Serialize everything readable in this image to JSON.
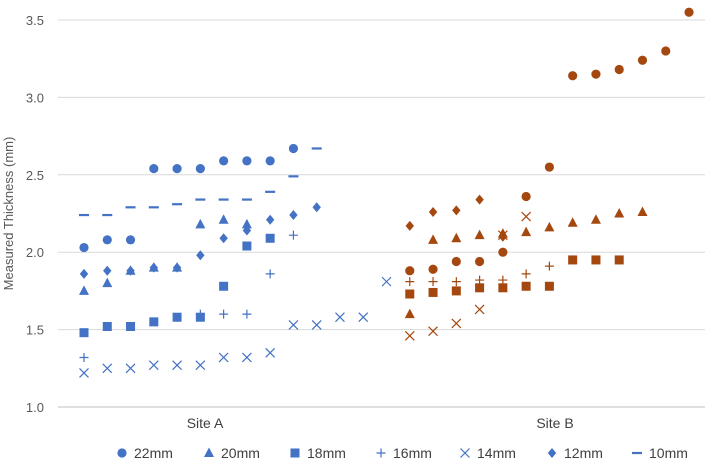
{
  "chart_data": {
    "type": "scatter",
    "ylabel": "Measured Thickness (mm)",
    "ylim": [
      1.0,
      3.5
    ],
    "yticks": [
      "1.0",
      "1.5",
      "2.0",
      "2.5",
      "3.0",
      "3.5"
    ],
    "grid": true,
    "legend_position": "bottom",
    "categories": [
      "Site A",
      "Site B"
    ],
    "sites": {
      "Site A": {
        "color": "#4472C4"
      },
      "Site B": {
        "color": "#A5480F"
      }
    },
    "series": [
      {
        "name": "22mm",
        "marker": "circle",
        "points": [
          {
            "x": 1,
            "y": 2.03,
            "site": "Site A"
          },
          {
            "x": 2,
            "y": 2.08,
            "site": "Site A"
          },
          {
            "x": 3,
            "y": 2.08,
            "site": "Site A"
          },
          {
            "x": 4,
            "y": 2.54,
            "site": "Site A"
          },
          {
            "x": 5,
            "y": 2.54,
            "site": "Site A"
          },
          {
            "x": 6,
            "y": 2.54,
            "site": "Site A"
          },
          {
            "x": 7,
            "y": 2.59,
            "site": "Site A"
          },
          {
            "x": 8,
            "y": 2.59,
            "site": "Site A"
          },
          {
            "x": 9,
            "y": 2.59,
            "site": "Site A"
          },
          {
            "x": 10,
            "y": 2.67,
            "site": "Site A"
          },
          {
            "x": 15,
            "y": 1.88,
            "site": "Site B"
          },
          {
            "x": 16,
            "y": 1.89,
            "site": "Site B"
          },
          {
            "x": 17,
            "y": 1.94,
            "site": "Site B"
          },
          {
            "x": 18,
            "y": 1.94,
            "site": "Site B"
          },
          {
            "x": 19,
            "y": 2.0,
            "site": "Site B"
          },
          {
            "x": 20,
            "y": 2.36,
            "site": "Site B"
          },
          {
            "x": 21,
            "y": 2.55,
            "site": "Site B"
          },
          {
            "x": 22,
            "y": 3.14,
            "site": "Site B"
          },
          {
            "x": 23,
            "y": 3.15,
            "site": "Site B"
          },
          {
            "x": 24,
            "y": 3.18,
            "site": "Site B"
          },
          {
            "x": 25,
            "y": 3.24,
            "site": "Site B"
          },
          {
            "x": 26,
            "y": 3.3,
            "site": "Site B"
          },
          {
            "x": 27,
            "y": 3.55,
            "site": "Site B"
          }
        ]
      },
      {
        "name": "20mm",
        "marker": "triangle",
        "points": [
          {
            "x": 1,
            "y": 1.75,
            "site": "Site A"
          },
          {
            "x": 2,
            "y": 1.8,
            "site": "Site A"
          },
          {
            "x": 3,
            "y": 1.88,
            "site": "Site A"
          },
          {
            "x": 4,
            "y": 1.9,
            "site": "Site A"
          },
          {
            "x": 5,
            "y": 1.9,
            "site": "Site A"
          },
          {
            "x": 6,
            "y": 2.18,
            "site": "Site A"
          },
          {
            "x": 7,
            "y": 2.21,
            "site": "Site A"
          },
          {
            "x": 8,
            "y": 2.18,
            "site": "Site A"
          },
          {
            "x": 15,
            "y": 1.6,
            "site": "Site B"
          },
          {
            "x": 16,
            "y": 2.08,
            "site": "Site B"
          },
          {
            "x": 17,
            "y": 2.09,
            "site": "Site B"
          },
          {
            "x": 18,
            "y": 2.11,
            "site": "Site B"
          },
          {
            "x": 19,
            "y": 2.12,
            "site": "Site B"
          },
          {
            "x": 20,
            "y": 2.13,
            "site": "Site B"
          },
          {
            "x": 21,
            "y": 2.16,
            "site": "Site B"
          },
          {
            "x": 22,
            "y": 2.19,
            "site": "Site B"
          },
          {
            "x": 23,
            "y": 2.21,
            "site": "Site B"
          },
          {
            "x": 24,
            "y": 2.25,
            "site": "Site B"
          },
          {
            "x": 25,
            "y": 2.26,
            "site": "Site B"
          }
        ]
      },
      {
        "name": "18mm",
        "marker": "square",
        "points": [
          {
            "x": 1,
            "y": 1.48,
            "site": "Site A"
          },
          {
            "x": 2,
            "y": 1.52,
            "site": "Site A"
          },
          {
            "x": 3,
            "y": 1.52,
            "site": "Site A"
          },
          {
            "x": 4,
            "y": 1.55,
            "site": "Site A"
          },
          {
            "x": 5,
            "y": 1.58,
            "site": "Site A"
          },
          {
            "x": 6,
            "y": 1.58,
            "site": "Site A"
          },
          {
            "x": 7,
            "y": 1.78,
            "site": "Site A"
          },
          {
            "x": 8,
            "y": 2.04,
            "site": "Site A"
          },
          {
            "x": 9,
            "y": 2.09,
            "site": "Site A"
          },
          {
            "x": 15,
            "y": 1.73,
            "site": "Site B"
          },
          {
            "x": 16,
            "y": 1.74,
            "site": "Site B"
          },
          {
            "x": 17,
            "y": 1.75,
            "site": "Site B"
          },
          {
            "x": 18,
            "y": 1.77,
            "site": "Site B"
          },
          {
            "x": 19,
            "y": 1.77,
            "site": "Site B"
          },
          {
            "x": 20,
            "y": 1.78,
            "site": "Site B"
          },
          {
            "x": 21,
            "y": 1.78,
            "site": "Site B"
          },
          {
            "x": 22,
            "y": 1.95,
            "site": "Site B"
          },
          {
            "x": 23,
            "y": 1.95,
            "site": "Site B"
          },
          {
            "x": 24,
            "y": 1.95,
            "site": "Site B"
          }
        ]
      },
      {
        "name": "16mm",
        "marker": "plus",
        "points": [
          {
            "x": 1,
            "y": 1.32,
            "site": "Site A"
          },
          {
            "x": 6,
            "y": 1.6,
            "site": "Site A"
          },
          {
            "x": 7,
            "y": 1.6,
            "site": "Site A"
          },
          {
            "x": 8,
            "y": 1.6,
            "site": "Site A"
          },
          {
            "x": 9,
            "y": 1.86,
            "site": "Site A"
          },
          {
            "x": 10,
            "y": 2.11,
            "site": "Site A"
          },
          {
            "x": 15,
            "y": 1.81,
            "site": "Site B"
          },
          {
            "x": 16,
            "y": 1.81,
            "site": "Site B"
          },
          {
            "x": 17,
            "y": 1.81,
            "site": "Site B"
          },
          {
            "x": 18,
            "y": 1.82,
            "site": "Site B"
          },
          {
            "x": 19,
            "y": 1.82,
            "site": "Site B"
          },
          {
            "x": 20,
            "y": 1.86,
            "site": "Site B"
          },
          {
            "x": 21,
            "y": 1.91,
            "site": "Site B"
          }
        ]
      },
      {
        "name": "14mm",
        "marker": "x",
        "points": [
          {
            "x": 1,
            "y": 1.22,
            "site": "Site A"
          },
          {
            "x": 2,
            "y": 1.25,
            "site": "Site A"
          },
          {
            "x": 3,
            "y": 1.25,
            "site": "Site A"
          },
          {
            "x": 4,
            "y": 1.27,
            "site": "Site A"
          },
          {
            "x": 5,
            "y": 1.27,
            "site": "Site A"
          },
          {
            "x": 6,
            "y": 1.27,
            "site": "Site A"
          },
          {
            "x": 7,
            "y": 1.32,
            "site": "Site A"
          },
          {
            "x": 8,
            "y": 1.32,
            "site": "Site A"
          },
          {
            "x": 9,
            "y": 1.35,
            "site": "Site A"
          },
          {
            "x": 10,
            "y": 1.53,
            "site": "Site A"
          },
          {
            "x": 11,
            "y": 1.53,
            "site": "Site A"
          },
          {
            "x": 12,
            "y": 1.58,
            "site": "Site A"
          },
          {
            "x": 13,
            "y": 1.58,
            "site": "Site A"
          },
          {
            "x": 14,
            "y": 1.81,
            "site": "Site A"
          },
          {
            "x": 15,
            "y": 1.46,
            "site": "Site B"
          },
          {
            "x": 16,
            "y": 1.49,
            "site": "Site B"
          },
          {
            "x": 17,
            "y": 1.54,
            "site": "Site B"
          },
          {
            "x": 18,
            "y": 1.63,
            "site": "Site B"
          },
          {
            "x": 19,
            "y": 2.11,
            "site": "Site B"
          },
          {
            "x": 20,
            "y": 2.23,
            "site": "Site B"
          }
        ]
      },
      {
        "name": "12mm",
        "marker": "diamond",
        "points": [
          {
            "x": 1,
            "y": 1.86,
            "site": "Site A"
          },
          {
            "x": 2,
            "y": 1.88,
            "site": "Site A"
          },
          {
            "x": 3,
            "y": 1.88,
            "site": "Site A"
          },
          {
            "x": 4,
            "y": 1.9,
            "site": "Site A"
          },
          {
            "x": 5,
            "y": 1.9,
            "site": "Site A"
          },
          {
            "x": 6,
            "y": 1.98,
            "site": "Site A"
          },
          {
            "x": 7,
            "y": 2.09,
            "site": "Site A"
          },
          {
            "x": 8,
            "y": 2.14,
            "site": "Site A"
          },
          {
            "x": 9,
            "y": 2.21,
            "site": "Site A"
          },
          {
            "x": 10,
            "y": 2.24,
            "site": "Site A"
          },
          {
            "x": 11,
            "y": 2.29,
            "site": "Site A"
          },
          {
            "x": 15,
            "y": 2.17,
            "site": "Site B"
          },
          {
            "x": 16,
            "y": 2.26,
            "site": "Site B"
          },
          {
            "x": 17,
            "y": 2.27,
            "site": "Site B"
          },
          {
            "x": 18,
            "y": 2.34,
            "site": "Site B"
          },
          {
            "x": 19,
            "y": 2.1,
            "site": "Site B"
          }
        ]
      },
      {
        "name": "10mm",
        "marker": "dash",
        "points": [
          {
            "x": 1,
            "y": 2.24,
            "site": "Site A"
          },
          {
            "x": 2,
            "y": 2.24,
            "site": "Site A"
          },
          {
            "x": 3,
            "y": 2.29,
            "site": "Site A"
          },
          {
            "x": 4,
            "y": 2.29,
            "site": "Site A"
          },
          {
            "x": 5,
            "y": 2.31,
            "site": "Site A"
          },
          {
            "x": 6,
            "y": 2.34,
            "site": "Site A"
          },
          {
            "x": 7,
            "y": 2.34,
            "site": "Site A"
          },
          {
            "x": 8,
            "y": 2.34,
            "site": "Site A"
          },
          {
            "x": 9,
            "y": 2.39,
            "site": "Site A"
          },
          {
            "x": 10,
            "y": 2.49,
            "site": "Site A"
          },
          {
            "x": 11,
            "y": 2.67,
            "site": "Site A"
          }
        ]
      }
    ]
  }
}
